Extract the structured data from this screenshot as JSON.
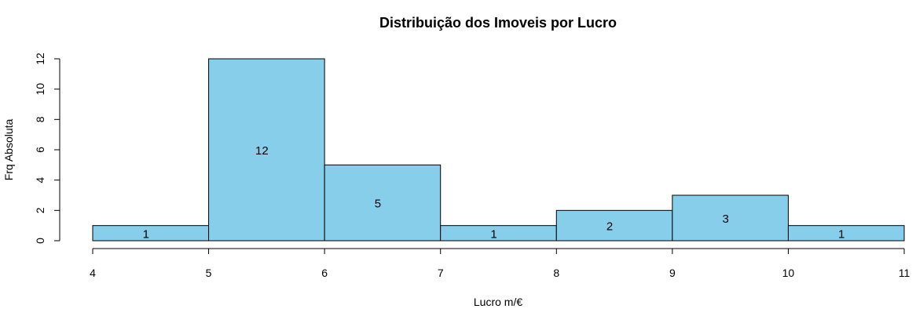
{
  "chart_data": {
    "type": "bar",
    "title": "Distribuição dos Imoveis por Lucro",
    "xlabel": "Lucro m/€",
    "ylabel": "Frq Absoluta",
    "bins": [
      {
        "start": 4,
        "end": 5,
        "value": 1
      },
      {
        "start": 5,
        "end": 6,
        "value": 12
      },
      {
        "start": 6,
        "end": 7,
        "value": 5
      },
      {
        "start": 7,
        "end": 8,
        "value": 1
      },
      {
        "start": 8,
        "end": 9,
        "value": 2
      },
      {
        "start": 9,
        "end": 10,
        "value": 3
      },
      {
        "start": 10,
        "end": 11,
        "value": 1
      }
    ],
    "x_ticks": [
      "4",
      "5",
      "6",
      "7",
      "8",
      "9",
      "10",
      "11"
    ],
    "y_ticks": [
      "0",
      "2",
      "4",
      "6",
      "8",
      "10",
      "12"
    ],
    "xlim": [
      4,
      11
    ],
    "ylim": [
      0,
      12
    ],
    "bar_color": "#87CEEB",
    "grid": false,
    "legend": "none"
  }
}
